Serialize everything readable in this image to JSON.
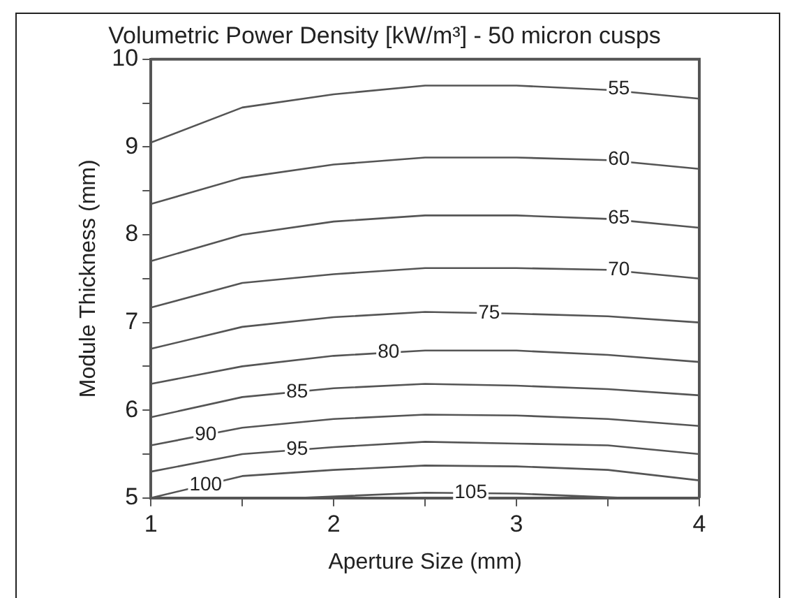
{
  "chart_data": {
    "type": "line",
    "title": "Volumetric Power Density [kW/m³] - 50 micron cusps",
    "xlabel": "Aperture Size (mm)",
    "ylabel": "Module Thickness (mm)",
    "xlim": [
      1,
      4
    ],
    "xticks": [
      1,
      {
        "value": 1.5,
        "label": null
      },
      2,
      {
        "value": 2.5,
        "label": null
      },
      3,
      {
        "value": 3.5,
        "label": null
      },
      4
    ],
    "ylim": [
      5,
      10
    ],
    "yticks": [
      5,
      {
        "value": 5.5,
        "label": null
      },
      6,
      {
        "value": 6.5,
        "label": null
      },
      7,
      {
        "value": 7.5,
        "label": null
      },
      8,
      {
        "value": 8.5,
        "label": null
      },
      9,
      {
        "value": 9.5,
        "label": null
      },
      10
    ],
    "grid": false,
    "legend": false,
    "marker": "none",
    "line_style": "solid",
    "series": [
      {
        "color": "#555555",
        "x": [
          1,
          1.5,
          2,
          2.5,
          3,
          3.5,
          4
        ],
        "values": [
          9.05,
          9.45,
          9.6,
          9.7,
          9.7,
          9.65,
          9.55
        ]
      },
      {
        "color": "#555555",
        "x": [
          1,
          1.5,
          2,
          2.5,
          3,
          3.5,
          4
        ],
        "values": [
          8.35,
          8.65,
          8.8,
          8.88,
          8.88,
          8.85,
          8.75
        ]
      },
      {
        "color": "#555555",
        "x": [
          1,
          1.5,
          2,
          2.5,
          3,
          3.5,
          4
        ],
        "values": [
          7.7,
          8.0,
          8.15,
          8.22,
          8.22,
          8.18,
          8.08
        ]
      },
      {
        "color": "#555555",
        "x": [
          1,
          1.5,
          2,
          2.5,
          3,
          3.5,
          4
        ],
        "values": [
          7.17,
          7.45,
          7.55,
          7.62,
          7.62,
          7.6,
          7.5
        ]
      },
      {
        "color": "#555555",
        "x": [
          1,
          1.5,
          2,
          2.5,
          3,
          3.5,
          4
        ],
        "values": [
          6.7,
          6.95,
          7.06,
          7.12,
          7.1,
          7.07,
          7.0
        ]
      },
      {
        "color": "#555555",
        "x": [
          1,
          1.5,
          2,
          2.5,
          3,
          3.5,
          4
        ],
        "values": [
          6.3,
          6.5,
          6.62,
          6.68,
          6.68,
          6.63,
          6.55
        ]
      },
      {
        "color": "#555555",
        "x": [
          1,
          1.5,
          2,
          2.5,
          3,
          3.5,
          4
        ],
        "values": [
          5.92,
          6.15,
          6.25,
          6.3,
          6.28,
          6.24,
          6.17
        ]
      },
      {
        "color": "#555555",
        "x": [
          1,
          1.5,
          2,
          2.5,
          3,
          3.5,
          4
        ],
        "values": [
          5.6,
          5.8,
          5.9,
          5.95,
          5.94,
          5.9,
          5.82
        ]
      },
      {
        "color": "#555555",
        "x": [
          1,
          1.5,
          2,
          2.5,
          3,
          3.5,
          4
        ],
        "values": [
          5.3,
          5.5,
          5.58,
          5.64,
          5.62,
          5.6,
          5.5
        ]
      },
      {
        "color": "#555555",
        "x": [
          1,
          1.5,
          2,
          2.5,
          3,
          3.5,
          4
        ],
        "values": [
          5.0,
          5.25,
          5.32,
          5.37,
          5.36,
          5.32,
          5.2
        ]
      },
      {
        "color": "#555555",
        "x": [
          1.8,
          2.5,
          3,
          3.6
        ],
        "values": [
          5.0,
          5.06,
          5.05,
          5.0
        ]
      }
    ],
    "annotations": [
      {
        "text": "55",
        "x": 3.56,
        "y": 9.66
      },
      {
        "text": "60",
        "x": 3.56,
        "y": 8.86
      },
      {
        "text": "65",
        "x": 3.56,
        "y": 8.19
      },
      {
        "text": "70",
        "x": 3.56,
        "y": 7.6
      },
      {
        "text": "75",
        "x": 2.85,
        "y": 7.11
      },
      {
        "text": "80",
        "x": 2.3,
        "y": 6.66
      },
      {
        "text": "85",
        "x": 1.8,
        "y": 6.21
      },
      {
        "text": "90",
        "x": 1.3,
        "y": 5.72
      },
      {
        "text": "95",
        "x": 1.8,
        "y": 5.55
      },
      {
        "text": "100",
        "x": 1.3,
        "y": 5.15
      },
      {
        "text": "105",
        "x": 2.75,
        "y": 5.06
      }
    ]
  }
}
